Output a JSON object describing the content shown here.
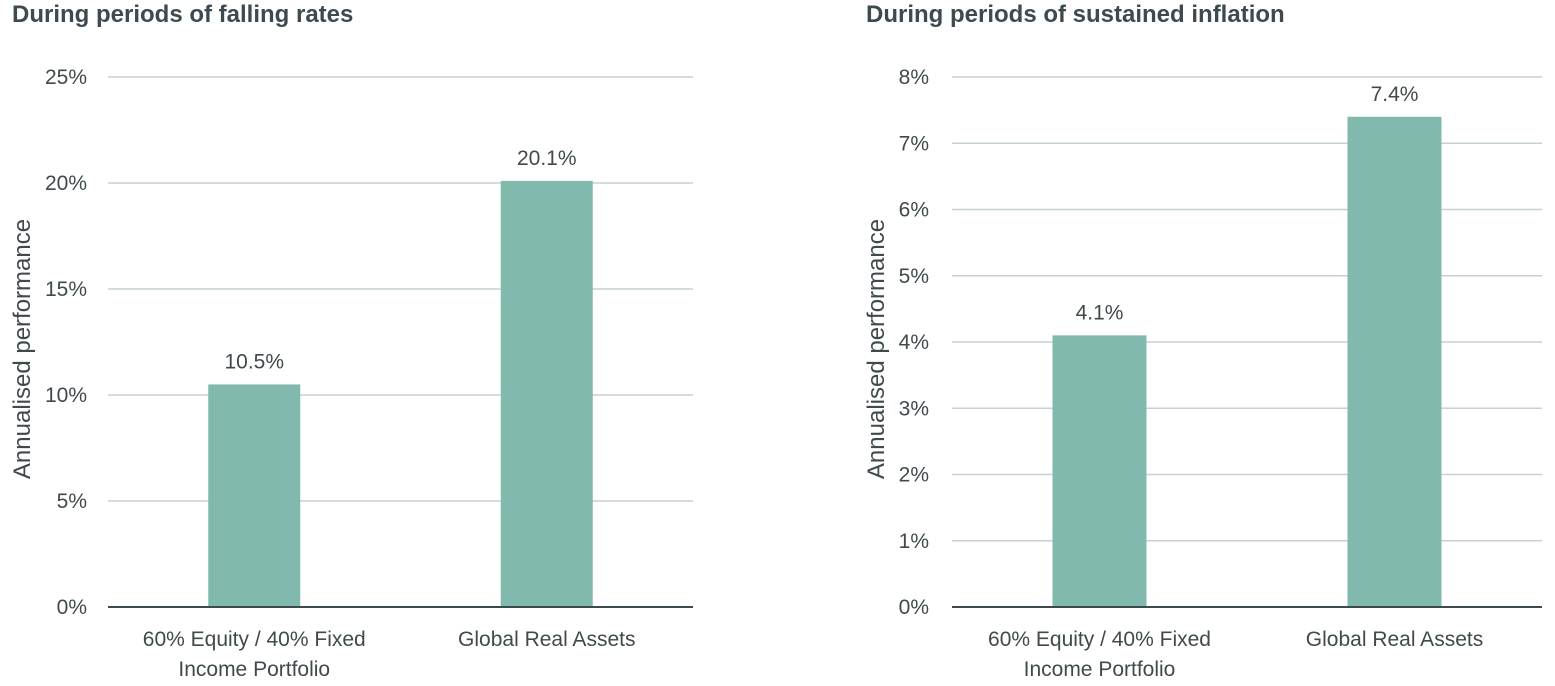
{
  "chart_data": [
    {
      "type": "bar",
      "title": "During periods of falling rates",
      "ylabel": "Annualised performance",
      "xlabel": "",
      "categories": [
        [
          "60% Equity / 40% Fixed",
          "Income Portfolio"
        ],
        [
          "Global Real Assets"
        ]
      ],
      "values": [
        10.5,
        20.1
      ],
      "data_labels": [
        "10.5%",
        "20.1%"
      ],
      "ylim": [
        0,
        25
      ],
      "yticks": [
        0,
        5,
        10,
        15,
        20,
        25
      ],
      "ytick_labels": [
        "0%",
        "5%",
        "10%",
        "15%",
        "20%",
        "25%"
      ],
      "grid": true,
      "legend": "none",
      "colors": {
        "bar": "#82b9ad",
        "grid": "#c6d2d2",
        "axis": "#3d4a4f",
        "text": "#404a4d"
      }
    },
    {
      "type": "bar",
      "title": "During periods of sustained inflation",
      "ylabel": "Annualised performance",
      "xlabel": "",
      "categories": [
        [
          "60% Equity / 40% Fixed",
          "Income Portfolio"
        ],
        [
          "Global Real Assets"
        ]
      ],
      "values": [
        4.1,
        7.4
      ],
      "data_labels": [
        "4.1%",
        "7.4%"
      ],
      "ylim": [
        0,
        8
      ],
      "yticks": [
        0,
        1,
        2,
        3,
        4,
        5,
        6,
        7,
        8
      ],
      "ytick_labels": [
        "0%",
        "1%",
        "2%",
        "3%",
        "4%",
        "5%",
        "6%",
        "7%",
        "8%"
      ],
      "grid": true,
      "legend": "none",
      "colors": {
        "bar": "#82b9ad",
        "grid": "#c6d2d2",
        "axis": "#3d4a4f",
        "text": "#404a4d"
      }
    }
  ]
}
